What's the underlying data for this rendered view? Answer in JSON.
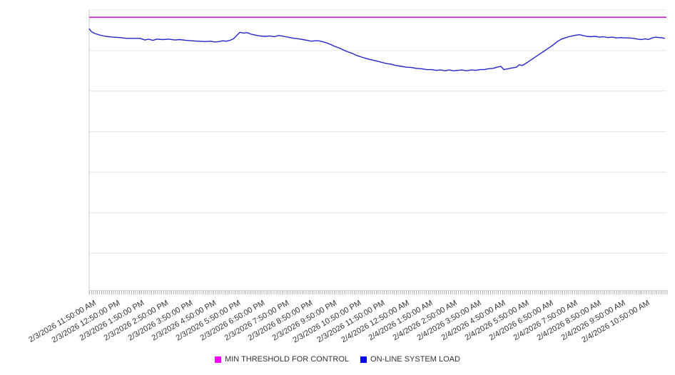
{
  "legend": {
    "items": [
      {
        "label": "MIN THRESHOLD FOR CONTROL",
        "color": "#ff00ff"
      },
      {
        "label": "ON-LINE SYSTEM LOAD",
        "color": "#0000ff"
      }
    ]
  },
  "colors": {
    "background": "#ffffff",
    "gridline": "#e4e4e4",
    "axis": "#c8c8c8",
    "minor_tick": "#b0b0b0",
    "label_text": "#333333",
    "threshold_line": "#c32cc3",
    "load_line": "#2525cd"
  },
  "chart_data": {
    "type": "line",
    "title": "",
    "xlabel": "",
    "ylabel": "",
    "grid": "horizontal",
    "legend_position": "bottom-center",
    "x_axis": {
      "unit": "time",
      "span_minutes": 1440,
      "tick_interval_minutes": 60,
      "minor_tick_interval_minutes": 5,
      "tick_labels": [
        "2/3/2026 11:50:00 AM",
        "2/3/2026 12:50:00 PM",
        "2/3/2026 1:50:00 PM",
        "2/3/2026 2:50:00 PM",
        "2/3/2026 3:50:00 PM",
        "2/3/2026 4:50:00 PM",
        "2/3/2026 5:50:00 PM",
        "2/3/2026 6:50:00 PM",
        "2/3/2026 7:50:00 PM",
        "2/3/2026 8:50:00 PM",
        "2/3/2026 9:50:00 PM",
        "2/3/2026 10:50:00 PM",
        "2/3/2026 11:50:00 PM",
        "2/4/2026 12:50:00 AM",
        "2/4/2026 1:50:00 AM",
        "2/4/2026 2:50:00 AM",
        "2/4/2026 3:50:00 AM",
        "2/4/2026 4:50:00 AM",
        "2/4/2026 5:50:00 AM",
        "2/4/2026 6:50:00 AM",
        "2/4/2026 7:50:00 AM",
        "2/4/2026 8:50:00 AM",
        "2/4/2026 9:50:00 AM",
        "2/4/2026 10:50:00 AM"
      ]
    },
    "y_axis": {
      "tick_labels_visible": false,
      "gridline_divisions": 7,
      "unit": "relative load (gridline divisions above x-axis; no y labels shown on screen)"
    },
    "series": [
      {
        "name": "MIN THRESHOLD FOR CONTROL",
        "type": "hline",
        "color": "#c32cc3",
        "value": 6.82
      },
      {
        "name": "ON-LINE SYSTEM LOAD",
        "type": "line",
        "color": "#2525cd",
        "points": [
          [
            0,
            6.54
          ],
          [
            5,
            6.47
          ],
          [
            14,
            6.42
          ],
          [
            27,
            6.38
          ],
          [
            41,
            6.35
          ],
          [
            59,
            6.33
          ],
          [
            77,
            6.32
          ],
          [
            94,
            6.3
          ],
          [
            112,
            6.3
          ],
          [
            127,
            6.3
          ],
          [
            139,
            6.26
          ],
          [
            148,
            6.28
          ],
          [
            159,
            6.25
          ],
          [
            168,
            6.28
          ],
          [
            184,
            6.27
          ],
          [
            198,
            6.28
          ],
          [
            214,
            6.26
          ],
          [
            226,
            6.27
          ],
          [
            241,
            6.25
          ],
          [
            255,
            6.24
          ],
          [
            273,
            6.23
          ],
          [
            290,
            6.22
          ],
          [
            303,
            6.23
          ],
          [
            314,
            6.21
          ],
          [
            324,
            6.22
          ],
          [
            333,
            6.24
          ],
          [
            342,
            6.23
          ],
          [
            351,
            6.25
          ],
          [
            360,
            6.29
          ],
          [
            369,
            6.38
          ],
          [
            376,
            6.45
          ],
          [
            385,
            6.43
          ],
          [
            394,
            6.44
          ],
          [
            405,
            6.4
          ],
          [
            415,
            6.38
          ],
          [
            426,
            6.36
          ],
          [
            438,
            6.35
          ],
          [
            451,
            6.36
          ],
          [
            462,
            6.34
          ],
          [
            472,
            6.37
          ],
          [
            481,
            6.36
          ],
          [
            490,
            6.34
          ],
          [
            501,
            6.32
          ],
          [
            512,
            6.3
          ],
          [
            522,
            6.29
          ],
          [
            533,
            6.27
          ],
          [
            544,
            6.25
          ],
          [
            554,
            6.23
          ],
          [
            563,
            6.24
          ],
          [
            572,
            6.24
          ],
          [
            581,
            6.22
          ],
          [
            592,
            6.19
          ],
          [
            602,
            6.15
          ],
          [
            613,
            6.1
          ],
          [
            624,
            6.06
          ],
          [
            635,
            6.01
          ],
          [
            645,
            5.97
          ],
          [
            656,
            5.93
          ],
          [
            667,
            5.88
          ],
          [
            679,
            5.84
          ],
          [
            692,
            5.8
          ],
          [
            704,
            5.77
          ],
          [
            717,
            5.74
          ],
          [
            729,
            5.71
          ],
          [
            741,
            5.68
          ],
          [
            754,
            5.66
          ],
          [
            766,
            5.63
          ],
          [
            779,
            5.61
          ],
          [
            791,
            5.59
          ],
          [
            804,
            5.58
          ],
          [
            816,
            5.56
          ],
          [
            829,
            5.55
          ],
          [
            841,
            5.53
          ],
          [
            854,
            5.53
          ],
          [
            866,
            5.51
          ],
          [
            877,
            5.52
          ],
          [
            888,
            5.5
          ],
          [
            898,
            5.52
          ],
          [
            909,
            5.5
          ],
          [
            920,
            5.51
          ],
          [
            930,
            5.52
          ],
          [
            941,
            5.5
          ],
          [
            954,
            5.52
          ],
          [
            964,
            5.51
          ],
          [
            975,
            5.53
          ],
          [
            986,
            5.53
          ],
          [
            996,
            5.55
          ],
          [
            1007,
            5.56
          ],
          [
            1018,
            5.59
          ],
          [
            1027,
            5.61
          ],
          [
            1034,
            5.53
          ],
          [
            1045,
            5.55
          ],
          [
            1055,
            5.57
          ],
          [
            1066,
            5.59
          ],
          [
            1073,
            5.65
          ],
          [
            1080,
            5.63
          ],
          [
            1089,
            5.68
          ],
          [
            1098,
            5.74
          ],
          [
            1107,
            5.8
          ],
          [
            1116,
            5.86
          ],
          [
            1125,
            5.92
          ],
          [
            1134,
            5.98
          ],
          [
            1143,
            6.04
          ],
          [
            1152,
            6.1
          ],
          [
            1160,
            6.16
          ],
          [
            1169,
            6.23
          ],
          [
            1178,
            6.28
          ],
          [
            1187,
            6.31
          ],
          [
            1196,
            6.34
          ],
          [
            1205,
            6.36
          ],
          [
            1214,
            6.38
          ],
          [
            1223,
            6.39
          ],
          [
            1232,
            6.37
          ],
          [
            1241,
            6.35
          ],
          [
            1251,
            6.34
          ],
          [
            1262,
            6.35
          ],
          [
            1273,
            6.33
          ],
          [
            1283,
            6.34
          ],
          [
            1294,
            6.32
          ],
          [
            1305,
            6.33
          ],
          [
            1315,
            6.31
          ],
          [
            1326,
            6.32
          ],
          [
            1337,
            6.31
          ],
          [
            1347,
            6.31
          ],
          [
            1358,
            6.3
          ],
          [
            1369,
            6.28
          ],
          [
            1378,
            6.27
          ],
          [
            1387,
            6.29
          ],
          [
            1395,
            6.27
          ],
          [
            1404,
            6.31
          ],
          [
            1413,
            6.33
          ],
          [
            1422,
            6.32
          ],
          [
            1431,
            6.31
          ],
          [
            1436,
            6.3
          ]
        ]
      }
    ]
  }
}
